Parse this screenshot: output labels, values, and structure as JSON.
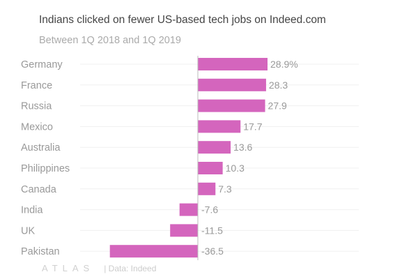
{
  "chart_data": {
    "type": "bar",
    "orientation": "horizontal",
    "title": "Indians clicked on fewer US-based tech jobs on Indeed.com",
    "subtitle": "Between 1Q 2018 and 1Q 2019",
    "categories": [
      "Germany",
      "France",
      "Russia",
      "Mexico",
      "Australia",
      "Philippines",
      "Canada",
      "India",
      "UK",
      "Pakistan"
    ],
    "values": [
      28.9,
      28.3,
      27.9,
      17.7,
      13.6,
      10.3,
      7.3,
      -7.6,
      -11.5,
      -36.5
    ],
    "data_labels": [
      "28.9%",
      "28.3",
      "27.9",
      "17.7",
      "13.6",
      "10.3",
      "7.3",
      "-7.6",
      "-11.5",
      "-36.5"
    ],
    "xlim": [
      -38,
      66
    ],
    "grid": true,
    "bar_color": "#d465bd"
  },
  "footer": {
    "logo": "ATLAS",
    "source": "| Data: Indeed"
  }
}
